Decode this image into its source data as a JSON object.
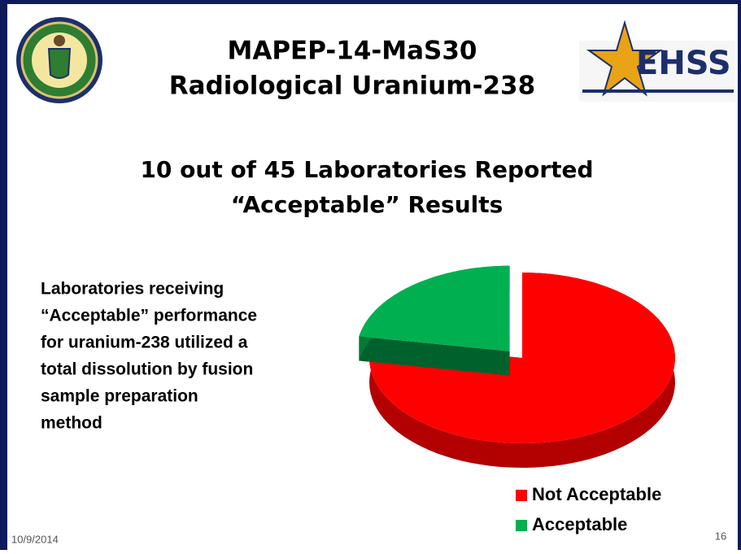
{
  "header": {
    "title": [
      "MAPEP-14-MaS30",
      "Radiological Uranium-238"
    ],
    "logo_text": "EHSS"
  },
  "subtitle": [
    "10 out of 45 Laboratories Reported",
    "“Acceptable” Results"
  ],
  "body": [
    "Laboratories receiving",
    "“Acceptable” performance",
    "for uranium-238 utilized a",
    "total dissolution by fusion",
    "sample preparation",
    "method"
  ],
  "footer": {
    "date": "10/9/2014",
    "page": "16"
  },
  "chart_data": {
    "type": "pie",
    "categories": [
      "Not Acceptable",
      "Acceptable"
    ],
    "values": [
      35,
      10
    ],
    "colors": [
      "#ff0000",
      "#00b050"
    ],
    "legend": "bottom-right"
  }
}
